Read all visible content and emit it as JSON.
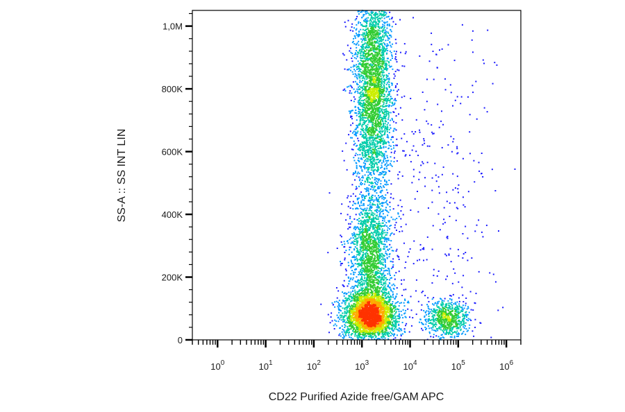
{
  "chart_data": {
    "type": "scatter",
    "style": "density-colored dot plot (flow cytometry)",
    "xlabel": "CD22 Purified Azide free/GAM APC",
    "ylabel": "SS-A :: SS INT LIN",
    "x_scale": "log",
    "xlim": [
      0.3,
      2000000
    ],
    "ylim": [
      0,
      1050000
    ],
    "x_ticks": [
      {
        "base": "10",
        "exp": "0",
        "value": 1
      },
      {
        "base": "10",
        "exp": "1",
        "value": 10
      },
      {
        "base": "10",
        "exp": "2",
        "value": 100
      },
      {
        "base": "10",
        "exp": "3",
        "value": 1000
      },
      {
        "base": "10",
        "exp": "4",
        "value": 10000
      },
      {
        "base": "10",
        "exp": "5",
        "value": 100000
      },
      {
        "base": "10",
        "exp": "6",
        "value": 1000000
      }
    ],
    "y_ticks": [
      {
        "label": "0",
        "value": 0
      },
      {
        "label": "200K",
        "value": 200000
      },
      {
        "label": "400K",
        "value": 400000
      },
      {
        "label": "600K",
        "value": 600000
      },
      {
        "label": "800K",
        "value": 800000
      },
      {
        "label": "1,0M",
        "value": 1000000
      }
    ],
    "density_colors": [
      "#1a1aff",
      "#0099ff",
      "#00ccaa",
      "#33cc33",
      "#ccee00",
      "#ffaa00",
      "#ff3300"
    ],
    "populations": [
      {
        "x_center": 1500,
        "y_center": 80000,
        "x_spread_log10": 0.28,
        "y_spread": 40000,
        "weight": 0.32
      },
      {
        "x_center": 1500,
        "y_center": 270000,
        "x_spread_log10": 0.22,
        "y_spread": 90000,
        "weight": 0.18
      },
      {
        "x_center": 1700,
        "y_center": 800000,
        "x_spread_log10": 0.2,
        "y_spread": 190000,
        "weight": 0.38
      },
      {
        "x_center": 60000,
        "y_center": 65000,
        "x_spread_log10": 0.22,
        "y_spread": 30000,
        "weight": 0.08
      },
      {
        "x_center": 30000,
        "y_center": 450000,
        "x_spread_log10": 0.7,
        "y_spread": 300000,
        "weight": 0.04
      }
    ]
  }
}
